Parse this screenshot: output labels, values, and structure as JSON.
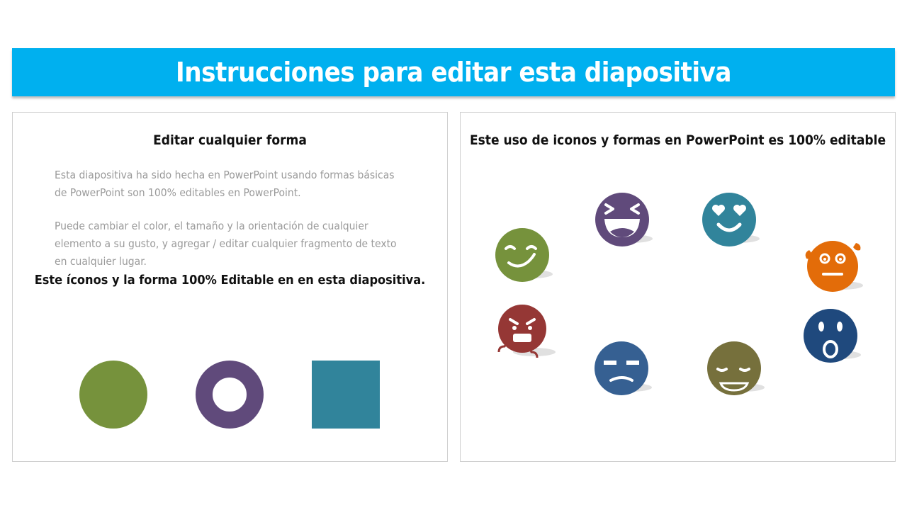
{
  "header": {
    "title": "Instrucciones para editar esta diapositiva",
    "color": "#00b0ef"
  },
  "left_panel": {
    "heading": "Editar cualquier forma",
    "paragraph_1": "Esta diapositiva ha sido hecha en PowerPoint usando formas básicas de PowerPoint son 100% editables en PowerPoint.",
    "paragraph_2": "Puede cambiar el color, el tamaño y la orientación de cualquier elemento a su gusto, y agregar / editar cualquier fragmento de texto en cualquier lugar.",
    "emphasis": "Este íconos y la forma 100% Editable en en esta diapositiva.",
    "shapes": [
      {
        "name": "circle",
        "color": "#76923c"
      },
      {
        "name": "ring",
        "color": "#604a7b"
      },
      {
        "name": "square",
        "color": "#31849b"
      }
    ]
  },
  "right_panel": {
    "heading": "Este uso de iconos y formas en PowerPoint es 100% editable",
    "icons": [
      {
        "name": "smirk-face-icon",
        "color": "#76923c"
      },
      {
        "name": "laughing-face-icon",
        "color": "#604a7b"
      },
      {
        "name": "heart-eyes-face-icon",
        "color": "#31849b"
      },
      {
        "name": "sweating-face-icon",
        "color": "#e36c09"
      },
      {
        "name": "angry-steaming-face-icon",
        "color": "#953735"
      },
      {
        "name": "annoyed-face-icon",
        "color": "#366092"
      },
      {
        "name": "content-face-icon",
        "color": "#76703c"
      },
      {
        "name": "surprised-face-icon",
        "color": "#1f497d"
      }
    ]
  }
}
